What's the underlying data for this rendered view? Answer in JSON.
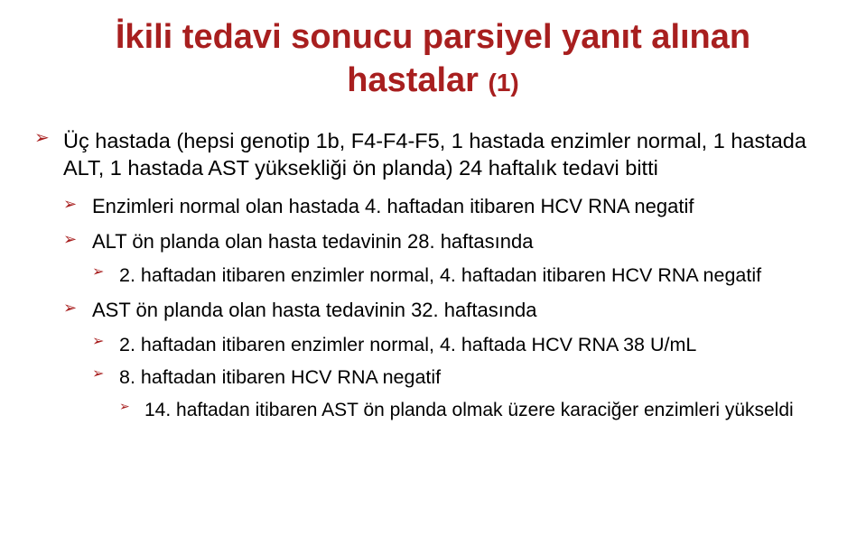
{
  "title_line1": "İkili tedavi sonucu parsiyel yanıt alınan",
  "title_line2_a": "hastalar ",
  "title_line2_b": "(1)",
  "bullets": {
    "b1": "Üç hastada (hepsi genotip 1b, F4-F4-F5, 1 hastada enzimler normal, 1 hastada ALT, 1 hastada AST yüksekliği ön planda) 24 haftalık tedavi bitti",
    "b1_1": "Enzimleri normal olan hastada 4. haftadan itibaren HCV RNA negatif",
    "b1_2": "ALT ön planda olan hasta tedavinin 28. haftasında",
    "b1_2_1": "2. haftadan itibaren enzimler normal, 4. haftadan itibaren HCV RNA negatif",
    "b1_3": "AST ön planda olan hasta tedavinin 32. haftasında",
    "b1_3_1": "2. haftadan itibaren enzimler normal, 4. haftada HCV RNA 38 U/mL",
    "b1_3_2": "8. haftadan itibaren HCV RNA negatif",
    "b1_3_2_1": "14. haftadan itibaren AST ön planda olmak üzere karaciğer enzimleri yükseldi"
  },
  "colors": {
    "title": "#a81f1f",
    "bullet_marker": "#a81f1f",
    "text": "#000000",
    "background": "#ffffff"
  },
  "fonts": {
    "title_size_pt": 29,
    "body_size_pt": 17,
    "family": "Arial"
  }
}
